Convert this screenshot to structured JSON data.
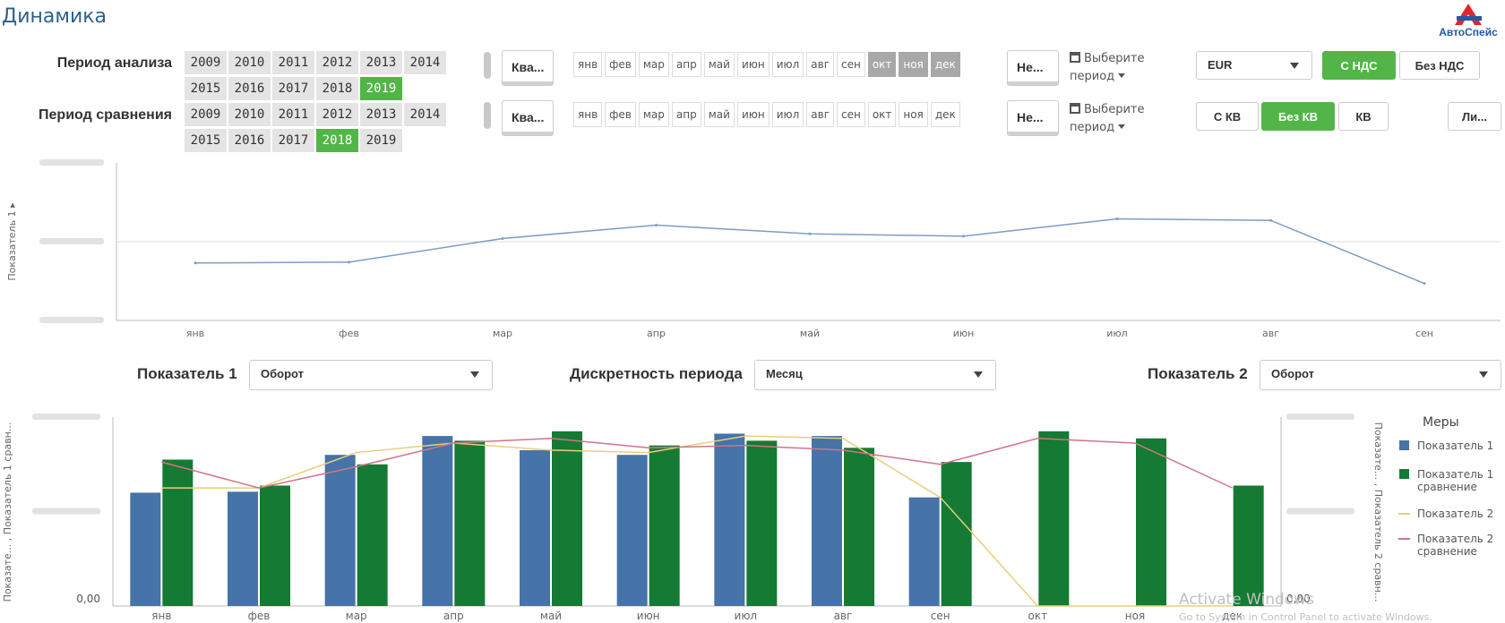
{
  "page": {
    "title": "Динамика"
  },
  "brand": {
    "logo_text": "АвтоСпейс",
    "logo_colors": [
      "#e3262c",
      "#2458a6"
    ]
  },
  "analysis": {
    "label": "Период анализа",
    "years": [
      "2009",
      "2010",
      "2011",
      "2012",
      "2013",
      "2014",
      "2015",
      "2016",
      "2017",
      "2018",
      "2019"
    ],
    "selected_year": "2019",
    "granularity": "Ква...",
    "months": [
      "янв",
      "фев",
      "мар",
      "апр",
      "май",
      "июн",
      "июл",
      "авг",
      "сен",
      "окт",
      "ноя",
      "дек"
    ],
    "selected_months": [
      "окт",
      "ноя",
      "дек"
    ],
    "week_select": "Не...",
    "period_picker_line1": "Выберите",
    "period_picker_line2": "период"
  },
  "comparison": {
    "label": "Период сравнения",
    "years": [
      "2009",
      "2010",
      "2011",
      "2012",
      "2013",
      "2014",
      "2015",
      "2016",
      "2017",
      "2018",
      "2019"
    ],
    "selected_year": "2018",
    "granularity": "Ква...",
    "months": [
      "янв",
      "фев",
      "мар",
      "апр",
      "май",
      "июн",
      "июл",
      "авг",
      "сен",
      "окт",
      "ноя",
      "дек"
    ],
    "selected_months": [],
    "week_select": "Не...",
    "period_picker_line1": "Выберите",
    "period_picker_line2": "период"
  },
  "currency": {
    "value": "EUR"
  },
  "vat_buttons": [
    {
      "label": "С НДС",
      "active": true
    },
    {
      "label": "Без НДС",
      "active": false
    }
  ],
  "kv_buttons": [
    {
      "label": "С КВ",
      "active": false
    },
    {
      "label": "Без КВ",
      "active": true
    },
    {
      "label": "КВ",
      "active": false
    }
  ],
  "extra_button": "Ли...",
  "controls": {
    "indicator1_label": "Показатель 1",
    "indicator1_value": "Оборот",
    "discreteness_label": "Дискретность периода",
    "discreteness_value": "Месяц",
    "indicator2_label": "Показатель 2",
    "indicator2_value": "Оборот"
  },
  "colors": {
    "accent_green": "#52b548",
    "line_blue": "#7c9dc6",
    "bar_blue": "#4673a8",
    "bar_green": "#157a33",
    "line_yellow": "#e8cf7a",
    "line_pink": "#d07585",
    "title_blue": "#2d5f8b"
  },
  "chart_data": [
    {
      "type": "line",
      "ylabel": "Показатель 1",
      "x": [
        "янв",
        "фев",
        "мар",
        "апр",
        "май",
        "июн",
        "июл",
        "авг",
        "сен"
      ],
      "series": [
        {
          "values": [
            1.23,
            1.24,
            1.54,
            1.71,
            1.6,
            1.57,
            1.79,
            1.77,
            0.97
          ]
        }
      ],
      "yticks": [
        0.5,
        1.5,
        2.5
      ],
      "ylim": [
        0.5,
        2.5
      ],
      "grid": true
    },
    {
      "type": "bar",
      "categories": [
        "янв",
        "фев",
        "мар",
        "апр",
        "май",
        "июн",
        "июл",
        "авг",
        "сен",
        "окт",
        "ноя",
        "дек"
      ],
      "ylabel_left": "Показате... , Показатель 1 сравн...",
      "ylabel_right": "Показате... , Показатель 2 сравн...",
      "legend_title": "Меры",
      "legend_position": "right",
      "ylim": [
        0,
        4
      ],
      "left_ticks": [
        "0,00"
      ],
      "right_ticks": [
        "0,00"
      ],
      "series": [
        {
          "name": "Показатель 1",
          "kind": "bar",
          "values": [
            2.4,
            2.42,
            3.2,
            3.6,
            3.3,
            3.2,
            3.65,
            3.6,
            2.3,
            0,
            0,
            0
          ]
        },
        {
          "name": "Показатель 1 сравнение",
          "kind": "bar",
          "values": [
            3.1,
            2.55,
            3.0,
            3.5,
            3.7,
            3.4,
            3.5,
            3.35,
            3.05,
            3.7,
            3.55,
            2.55
          ]
        },
        {
          "name": "Показатель 2",
          "kind": "line",
          "values": [
            2.5,
            2.5,
            3.25,
            3.45,
            3.3,
            3.25,
            3.6,
            3.55,
            2.3,
            0,
            0,
            0
          ]
        },
        {
          "name": "Показатель 2 сравнение",
          "kind": "line",
          "values": [
            3.05,
            2.5,
            2.95,
            3.45,
            3.55,
            3.35,
            3.4,
            3.3,
            3.0,
            3.55,
            3.45,
            2.5
          ]
        }
      ]
    }
  ],
  "watermark": {
    "line1": "Activate Windows",
    "line2": "Go to System in Control Panel to activate Windows."
  }
}
